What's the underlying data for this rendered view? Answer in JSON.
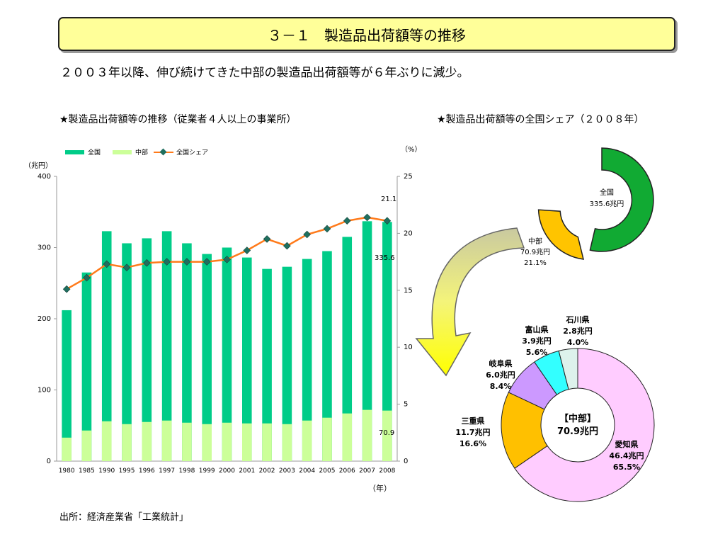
{
  "header": {
    "title": "３－１　製造品出荷額等の推移",
    "subtitle": "２００３年以降、伸び続けてきた中部の製造品出荷額等が６年ぶりに減少。"
  },
  "left_chart": {
    "heading": "★製造品出荷額等の推移（従業者４人以上の事業所）",
    "unit_left": "（兆円）",
    "unit_right": "（%）",
    "unit_x": "（年）"
  },
  "right_chart": {
    "heading": "★製造品出荷額等の全国シェア（２００８年）"
  },
  "source": "出所：経済産業省「工業統計」",
  "colors": {
    "national": "#00cc88",
    "chubu": "#ccff99",
    "share": "#ff7a1a",
    "marker": "#1f6f5f"
  },
  "chart_data": [
    {
      "type": "bar",
      "categories": [
        "1980",
        "1985",
        "1990",
        "1995",
        "1996",
        "1997",
        "1998",
        "1999",
        "2000",
        "2001",
        "2002",
        "2003",
        "2004",
        "2005",
        "2006",
        "2007",
        "2008"
      ],
      "series": [
        {
          "name": "全国",
          "values": [
            212,
            265,
            323,
            306,
            313,
            323,
            306,
            291,
            300,
            286,
            270,
            273,
            284,
            295,
            315,
            337,
            336
          ]
        },
        {
          "name": "中部",
          "values": [
            33,
            43,
            56,
            52,
            55,
            57,
            54,
            52,
            54,
            53,
            53,
            52,
            57,
            61,
            67,
            72,
            71
          ]
        },
        {
          "name": "全国シェア",
          "axis": "right",
          "values": [
            15.1,
            16.1,
            17.3,
            17.0,
            17.4,
            17.5,
            17.5,
            17.5,
            17.7,
            18.5,
            19.5,
            18.9,
            19.9,
            20.4,
            21.1,
            21.4,
            21.1
          ]
        }
      ],
      "ylim": [
        0,
        400
      ],
      "yticks": [
        "0",
        "100",
        "200",
        "300",
        "400"
      ],
      "y2lim": [
        0,
        25
      ],
      "y2ticks": [
        "0",
        "5",
        "10",
        "15",
        "20",
        "25"
      ],
      "annotations": [
        "21.1",
        "335.6",
        "70.9"
      ],
      "legend": "top-left"
    },
    {
      "type": "pie",
      "variant": "donut",
      "slices": [
        {
          "name": "全国",
          "value": "335.6兆円"
        },
        {
          "name": "中部",
          "value": "70.9兆円",
          "share": "21.1%"
        }
      ]
    },
    {
      "type": "pie",
      "variant": "donut",
      "center_label": "【中部】",
      "center_value": "70.9兆円",
      "slices": [
        {
          "name": "愛知県",
          "value": "46.4兆円",
          "pct": 65.5,
          "pct_label": "65.5%",
          "color": "#ffccff"
        },
        {
          "name": "三重県",
          "value": "11.7兆円",
          "pct": 16.6,
          "pct_label": "16.6%",
          "color": "#ffc000"
        },
        {
          "name": "岐阜県",
          "value": "6.0兆円",
          "pct": 8.4,
          "pct_label": "8.4%",
          "color": "#cc99ff"
        },
        {
          "name": "富山県",
          "value": "3.9兆円",
          "pct": 5.6,
          "pct_label": "5.6%",
          "color": "#33ffff"
        },
        {
          "name": "石川県",
          "value": "2.8兆円",
          "pct": 4.0,
          "pct_label": "4.0%",
          "color": "#ddf2ec"
        }
      ]
    }
  ]
}
